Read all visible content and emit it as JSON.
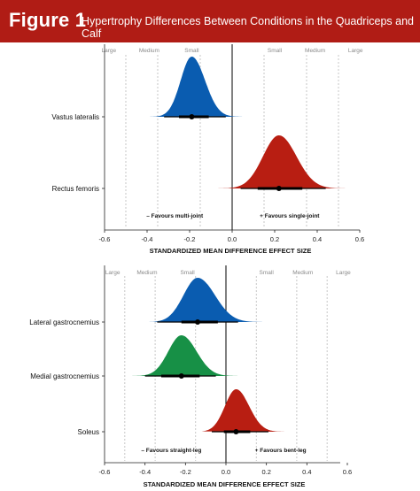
{
  "figure": {
    "label": "Figure 1",
    "title": "Hypertrophy Differences Between Conditions in the Quadriceps and Calf"
  },
  "colors": {
    "header_bg": "#b01c15",
    "blue": "#0a5cb0",
    "red": "#b81e12",
    "green": "#179046"
  },
  "chart_data": [
    {
      "type": "density",
      "xlabel": "STANDARDIZED MEAN DIFFERENCE EFFECT SIZE",
      "xlim": [
        -0.6,
        0.6
      ],
      "xticks": [
        "-0.6",
        "-0.4",
        "-0.2",
        "0.0",
        "0.2",
        "0.4",
        "0.6"
      ],
      "xtick_values": [
        -0.6,
        -0.4,
        -0.2,
        0.0,
        0.2,
        0.4,
        0.6
      ],
      "reference_lines": [
        -0.5,
        -0.35,
        -0.15,
        0.15,
        0.35,
        0.5
      ],
      "magnitude_labels": [
        {
          "text": "Large",
          "x": -0.58
        },
        {
          "text": "Medium",
          "x": -0.39
        },
        {
          "text": "Small",
          "x": -0.19
        },
        {
          "text": "Small",
          "x": 0.2
        },
        {
          "text": "Medium",
          "x": 0.39
        },
        {
          "text": "Large",
          "x": 0.58
        }
      ],
      "favours_left": "– Favours multi-joint",
      "favours_right": "+ Favours single-joint",
      "series": [
        {
          "name": "Vastus lateralis",
          "color": "blue",
          "mean": -0.19,
          "sd": 0.052,
          "skew": 0.8,
          "ci_thick": [
            -0.25,
            -0.11
          ],
          "ci_thin": [
            -0.32,
            -0.03
          ],
          "range": [
            -0.4,
            0.08
          ]
        },
        {
          "name": "Rectus femoris",
          "color": "red",
          "mean": 0.22,
          "sd": 0.075,
          "skew": 0.4,
          "ci_thick": [
            0.12,
            0.33
          ],
          "ci_thin": [
            0.04,
            0.44
          ],
          "range": [
            -0.12,
            0.58
          ]
        }
      ]
    },
    {
      "type": "density",
      "xlabel": "STANDARDIZED MEAN DIFFERENCE EFFECT SIZE",
      "xlim": [
        -0.6,
        0.6
      ],
      "xticks": [
        "-0.6",
        "-0.4",
        "-0.2",
        "0.0",
        "0.2",
        "0.4",
        "0.6"
      ],
      "xtick_values": [
        -0.6,
        -0.4,
        -0.2,
        0.0,
        0.2,
        0.4,
        0.6
      ],
      "reference_lines": [
        -0.5,
        -0.35,
        -0.15,
        0.15,
        0.35,
        0.5
      ],
      "magnitude_labels": [
        {
          "text": "Large",
          "x": -0.56
        },
        {
          "text": "Medium",
          "x": -0.39
        },
        {
          "text": "Small",
          "x": -0.19
        },
        {
          "text": "Small",
          "x": 0.2
        },
        {
          "text": "Medium",
          "x": 0.38
        },
        {
          "text": "Large",
          "x": 0.58
        }
      ],
      "favours_left": "– Favours straight-leg",
      "favours_right": "+ Favours bent-leg",
      "series": [
        {
          "name": "Lateral gastrocnemius",
          "color": "blue",
          "mean": -0.14,
          "sd": 0.07,
          "skew": 0.9,
          "ci_thick": [
            -0.22,
            -0.04
          ],
          "ci_thin": [
            -0.34,
            0.06
          ],
          "range": [
            -0.38,
            0.2
          ]
        },
        {
          "name": "Medial gastrocnemius",
          "color": "green",
          "mean": -0.22,
          "sd": 0.065,
          "skew": 0.6,
          "ci_thick": [
            -0.32,
            -0.13
          ],
          "ci_thin": [
            -0.4,
            -0.05
          ],
          "range": [
            -0.6,
            0.1
          ]
        },
        {
          "name": "Soleus",
          "color": "red",
          "mean": 0.05,
          "sd": 0.055,
          "skew": 0.7,
          "ci_thick": [
            -0.01,
            0.12
          ],
          "ci_thin": [
            -0.07,
            0.21
          ],
          "range": [
            -0.12,
            0.3
          ]
        }
      ]
    }
  ]
}
